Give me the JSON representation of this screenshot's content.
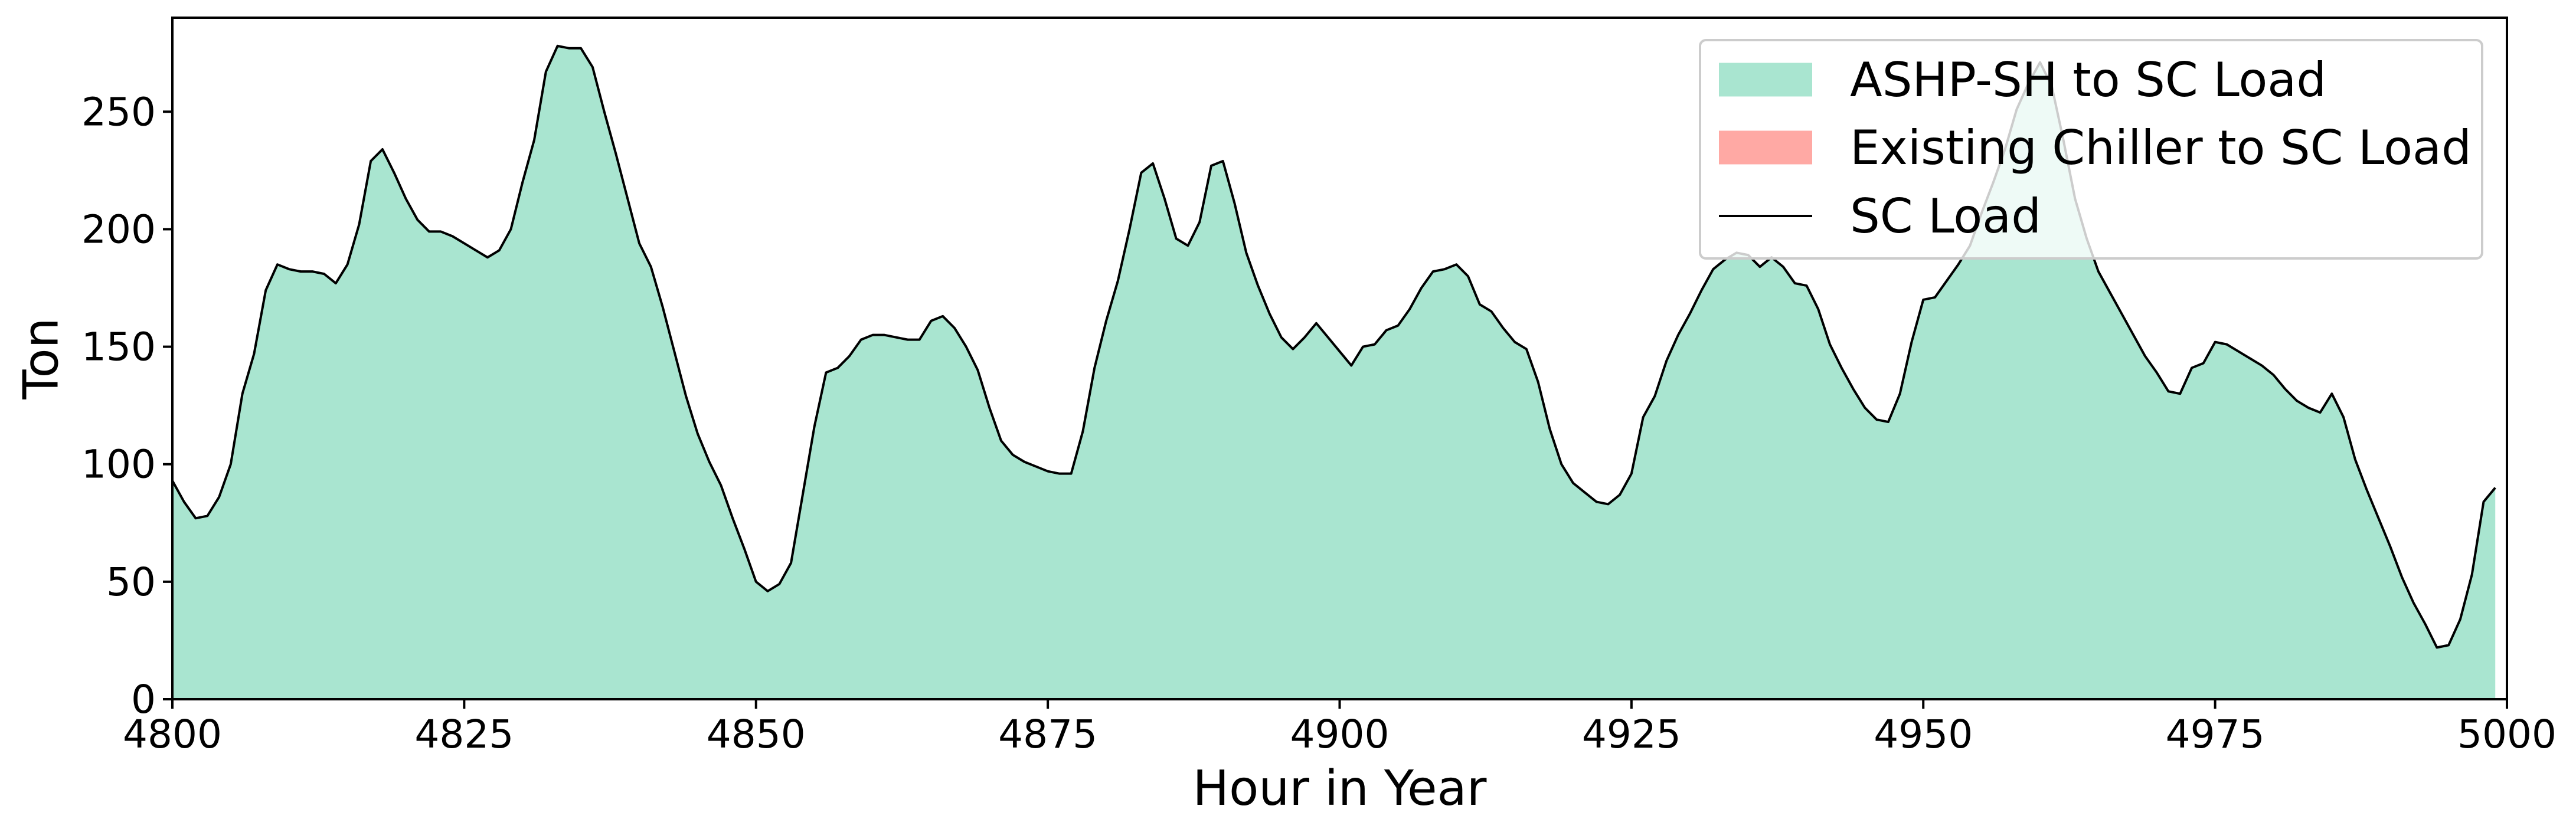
{
  "colors": {
    "ashp_fill": "#a9e5d0",
    "chiller_fill": "#ffa9a4",
    "load_line": "#000000",
    "background": "#ffffff"
  },
  "chart_data": {
    "type": "area",
    "title": "",
    "xlabel": "Hour in Year",
    "ylabel": "Ton",
    "xlim": [
      4800,
      5000
    ],
    "ylim": [
      0,
      290
    ],
    "xticks": [
      4800,
      4825,
      4850,
      4875,
      4900,
      4925,
      4950,
      4975,
      5000
    ],
    "yticks": [
      0,
      50,
      100,
      150,
      200,
      250
    ],
    "grid": false,
    "legend_position": "top-right",
    "x": [
      4800,
      4801,
      4802,
      4803,
      4804,
      4805,
      4806,
      4807,
      4808,
      4809,
      4810,
      4811,
      4812,
      4813,
      4814,
      4815,
      4816,
      4817,
      4818,
      4819,
      4820,
      4821,
      4822,
      4823,
      4824,
      4825,
      4826,
      4827,
      4828,
      4829,
      4830,
      4831,
      4832,
      4833,
      4834,
      4835,
      4836,
      4837,
      4838,
      4839,
      4840,
      4841,
      4842,
      4843,
      4844,
      4845,
      4846,
      4847,
      4848,
      4849,
      4850,
      4851,
      4852,
      4853,
      4854,
      4855,
      4856,
      4857,
      4858,
      4859,
      4860,
      4861,
      4862,
      4863,
      4864,
      4865,
      4866,
      4867,
      4868,
      4869,
      4870,
      4871,
      4872,
      4873,
      4874,
      4875,
      4876,
      4877,
      4878,
      4879,
      4880,
      4881,
      4882,
      4883,
      4884,
      4885,
      4886,
      4887,
      4888,
      4889,
      4890,
      4891,
      4892,
      4893,
      4894,
      4895,
      4896,
      4897,
      4898,
      4899,
      4900,
      4901,
      4902,
      4903,
      4904,
      4905,
      4906,
      4907,
      4908,
      4909,
      4910,
      4911,
      4912,
      4913,
      4914,
      4915,
      4916,
      4917,
      4918,
      4919,
      4920,
      4921,
      4922,
      4923,
      4924,
      4925,
      4926,
      4927,
      4928,
      4929,
      4930,
      4931,
      4932,
      4933,
      4934,
      4935,
      4936,
      4937,
      4938,
      4939,
      4940,
      4941,
      4942,
      4943,
      4944,
      4945,
      4946,
      4947,
      4948,
      4949,
      4950,
      4951,
      4952,
      4953,
      4954,
      4955,
      4956,
      4957,
      4958,
      4959,
      4960,
      4961,
      4962,
      4963,
      4964,
      4965,
      4966,
      4967,
      4968,
      4969,
      4970,
      4971,
      4972,
      4973,
      4974,
      4975,
      4976,
      4977,
      4978,
      4979,
      4980,
      4981,
      4982,
      4983,
      4984,
      4985,
      4986,
      4987,
      4988,
      4989,
      4990,
      4991,
      4992,
      4993,
      4994,
      4995,
      4996,
      4997,
      4998,
      4999
    ],
    "series": [
      {
        "name": "ASHP-SH to SC Load",
        "style": "area",
        "values": [
          93,
          84,
          77,
          78,
          86,
          100,
          130,
          147,
          174,
          185,
          183,
          182,
          182,
          181,
          177,
          185,
          202,
          229,
          234,
          224,
          213,
          204,
          199,
          199,
          197,
          194,
          191,
          188,
          191,
          200,
          220,
          238,
          267,
          278,
          277,
          277,
          269,
          250,
          232,
          213,
          194,
          184,
          167,
          148,
          129,
          113,
          101,
          91,
          77,
          64,
          50,
          46,
          49,
          58,
          87,
          116,
          139,
          141,
          146,
          153,
          155,
          155,
          154,
          153,
          153,
          161,
          163,
          158,
          150,
          140,
          124,
          110,
          104,
          101,
          99,
          97,
          96,
          96,
          114,
          141,
          161,
          178,
          200,
          224,
          228,
          213,
          196,
          193,
          203,
          227,
          229,
          211,
          190,
          176,
          164,
          154,
          149,
          154,
          160,
          154,
          148,
          142,
          150,
          151,
          157,
          159,
          166,
          175,
          182,
          183,
          185,
          180,
          168,
          165,
          158,
          152,
          149,
          135,
          115,
          100,
          92,
          88,
          84,
          83,
          87,
          96,
          120,
          129,
          144,
          155,
          164,
          174,
          183,
          187,
          190,
          189,
          184,
          188,
          184,
          177,
          176,
          166,
          151,
          141,
          132,
          124,
          119,
          118,
          130,
          152,
          170,
          171,
          178,
          185,
          193,
          207,
          220,
          234,
          251,
          262,
          271,
          261,
          238,
          213,
          196,
          182,
          173,
          164,
          155,
          146,
          139,
          131,
          130,
          141,
          143,
          152,
          151,
          148,
          145,
          142,
          138,
          132,
          127,
          124,
          122,
          130,
          120,
          102,
          89,
          77,
          65,
          52,
          41,
          32,
          22,
          23,
          34,
          53,
          84,
          90
        ]
      },
      {
        "name": "Existing Chiller to SC Load",
        "style": "area",
        "values": [
          0,
          0,
          0,
          0,
          0,
          0,
          0,
          0,
          0,
          0,
          0,
          0,
          0,
          0,
          0,
          0,
          0,
          0,
          0,
          0,
          0,
          0,
          0,
          0,
          0,
          0,
          0,
          0,
          0,
          0,
          0,
          0,
          0,
          0,
          0,
          0,
          0,
          0,
          0,
          0,
          0,
          0,
          0,
          0,
          0,
          0,
          0,
          0,
          0,
          0,
          0,
          0,
          0,
          0,
          0,
          0,
          0,
          0,
          0,
          0,
          0,
          0,
          0,
          0,
          0,
          0,
          0,
          0,
          0,
          0,
          0,
          0,
          0,
          0,
          0,
          0,
          0,
          0,
          0,
          0,
          0,
          0,
          0,
          0,
          0,
          0,
          0,
          0,
          0,
          0,
          0,
          0,
          0,
          0,
          0,
          0,
          0,
          0,
          0,
          0,
          0,
          0,
          0,
          0,
          0,
          0,
          0,
          0,
          0,
          0,
          0,
          0,
          0,
          0,
          0,
          0,
          0,
          0,
          0,
          0,
          0,
          0,
          0,
          0,
          0,
          0,
          0,
          0,
          0,
          0,
          0,
          0,
          0,
          0,
          0,
          0,
          0,
          0,
          0,
          0,
          0,
          0,
          0,
          0,
          0,
          0,
          0,
          0,
          0,
          0,
          0,
          0,
          0,
          0,
          0,
          0,
          0,
          0,
          0,
          0,
          0,
          0,
          0,
          0,
          0,
          0,
          0,
          0,
          0,
          0,
          0,
          0,
          0,
          0,
          0,
          0,
          0,
          0,
          0,
          0,
          0,
          0,
          0,
          0,
          0,
          0,
          0,
          0,
          0,
          0,
          0,
          0,
          0,
          0,
          0,
          0,
          0,
          0,
          0,
          0
        ]
      },
      {
        "name": "SC Load",
        "style": "line",
        "values": [
          93,
          84,
          77,
          78,
          86,
          100,
          130,
          147,
          174,
          185,
          183,
          182,
          182,
          181,
          177,
          185,
          202,
          229,
          234,
          224,
          213,
          204,
          199,
          199,
          197,
          194,
          191,
          188,
          191,
          200,
          220,
          238,
          267,
          278,
          277,
          277,
          269,
          250,
          232,
          213,
          194,
          184,
          167,
          148,
          129,
          113,
          101,
          91,
          77,
          64,
          50,
          46,
          49,
          58,
          87,
          116,
          139,
          141,
          146,
          153,
          155,
          155,
          154,
          153,
          153,
          161,
          163,
          158,
          150,
          140,
          124,
          110,
          104,
          101,
          99,
          97,
          96,
          96,
          114,
          141,
          161,
          178,
          200,
          224,
          228,
          213,
          196,
          193,
          203,
          227,
          229,
          211,
          190,
          176,
          164,
          154,
          149,
          154,
          160,
          154,
          148,
          142,
          150,
          151,
          157,
          159,
          166,
          175,
          182,
          183,
          185,
          180,
          168,
          165,
          158,
          152,
          149,
          135,
          115,
          100,
          92,
          88,
          84,
          83,
          87,
          96,
          120,
          129,
          144,
          155,
          164,
          174,
          183,
          187,
          190,
          189,
          184,
          188,
          184,
          177,
          176,
          166,
          151,
          141,
          132,
          124,
          119,
          118,
          130,
          152,
          170,
          171,
          178,
          185,
          193,
          207,
          220,
          234,
          251,
          262,
          271,
          261,
          238,
          213,
          196,
          182,
          173,
          164,
          155,
          146,
          139,
          131,
          130,
          141,
          143,
          152,
          151,
          148,
          145,
          142,
          138,
          132,
          127,
          124,
          122,
          130,
          120,
          102,
          89,
          77,
          65,
          52,
          41,
          32,
          22,
          23,
          34,
          53,
          84,
          90
        ]
      }
    ]
  }
}
